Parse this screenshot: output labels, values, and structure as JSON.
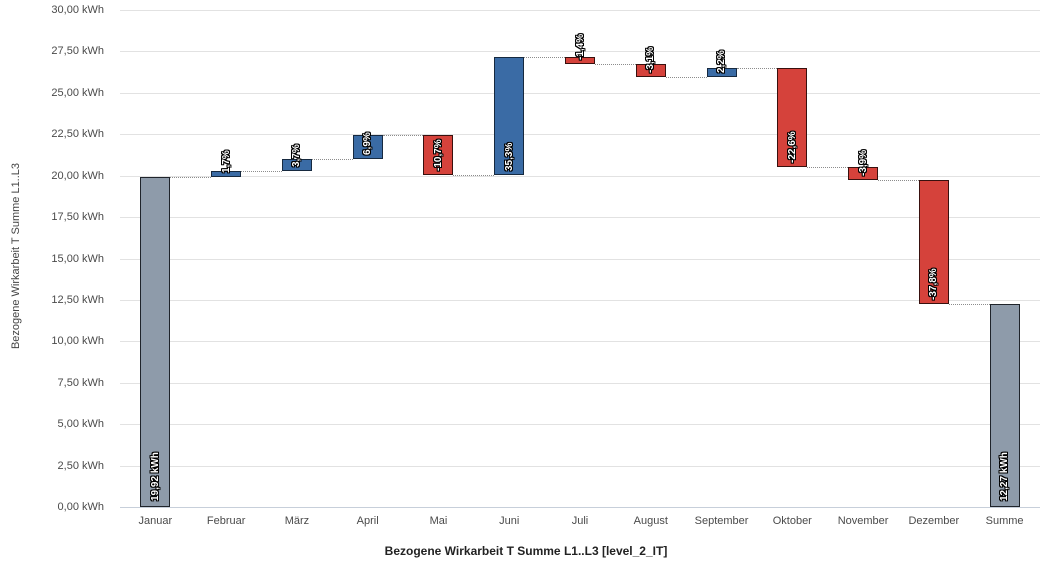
{
  "chart_data": {
    "type": "bar",
    "subtype": "waterfall",
    "y_axis_title": "Bezogene Wirkarbeit T Summe L1..L3",
    "x_axis_title": "Bezogene Wirkarbeit T Summe L1..L3 [level_2_IT]",
    "ylim": [
      0,
      30
    ],
    "y_tick_step": 2.5,
    "grid": "horizontal",
    "y_ticks": [
      "0,00 kWh",
      "2,50 kWh",
      "5,00 kWh",
      "7,50 kWh",
      "10,00 kWh",
      "12,50 kWh",
      "15,00 kWh",
      "17,50 kWh",
      "20,00 kWh",
      "22,50 kWh",
      "25,00 kWh",
      "27,50 kWh",
      "30,00 kWh"
    ],
    "categories": [
      "Januar",
      "Februar",
      "März",
      "April",
      "Mai",
      "Juni",
      "Juli",
      "August",
      "September",
      "Oktober",
      "November",
      "Dezember",
      "Summe"
    ],
    "bars": [
      {
        "category": "Januar",
        "label": "19,92 kWh",
        "kind": "total",
        "start": 0,
        "end": 19.92
      },
      {
        "category": "Februar",
        "label": "1,7%",
        "kind": "increase",
        "start": 19.92,
        "end": 20.26
      },
      {
        "category": "März",
        "label": "3,7%",
        "kind": "increase",
        "start": 20.26,
        "end": 21.01
      },
      {
        "category": "April",
        "label": "6,9%",
        "kind": "increase",
        "start": 21.01,
        "end": 22.46
      },
      {
        "category": "Mai",
        "label": "-10,7%",
        "kind": "decrease",
        "start": 22.46,
        "end": 20.06
      },
      {
        "category": "Juni",
        "label": "35,3%",
        "kind": "increase",
        "start": 20.06,
        "end": 27.14
      },
      {
        "category": "Juli",
        "label": "-1,4%",
        "kind": "decrease",
        "start": 27.14,
        "end": 26.76
      },
      {
        "category": "August",
        "label": "-3,1%",
        "kind": "decrease",
        "start": 26.76,
        "end": 25.93
      },
      {
        "category": "September",
        "label": "2,2%",
        "kind": "increase",
        "start": 25.93,
        "end": 26.5
      },
      {
        "category": "Oktober",
        "label": "-22,6%",
        "kind": "decrease",
        "start": 26.5,
        "end": 20.51
      },
      {
        "category": "November",
        "label": "-3,9%",
        "kind": "decrease",
        "start": 20.51,
        "end": 19.71
      },
      {
        "category": "Dezember",
        "label": "-37,8%",
        "kind": "decrease",
        "start": 19.71,
        "end": 12.26
      },
      {
        "category": "Summe",
        "label": "12,27 kWh",
        "kind": "total",
        "start": 0,
        "end": 12.27
      }
    ],
    "colors": {
      "increase_fill": "#3A6BA5",
      "increase_border": "#16293F",
      "decrease_fill": "#D5423B",
      "decrease_border": "#38100E",
      "total_fill": "#8E9BAA",
      "total_border": "#1F242B",
      "gridline": "#E2E2E2",
      "zero_line": "#C7CFDA",
      "connector": "#8C8C8C",
      "axis_text": "#4A4A4A",
      "title_text": "#222222",
      "label_text": "#FFFFFF",
      "label_outline": "#000000",
      "background": "#FFFFFF"
    }
  }
}
